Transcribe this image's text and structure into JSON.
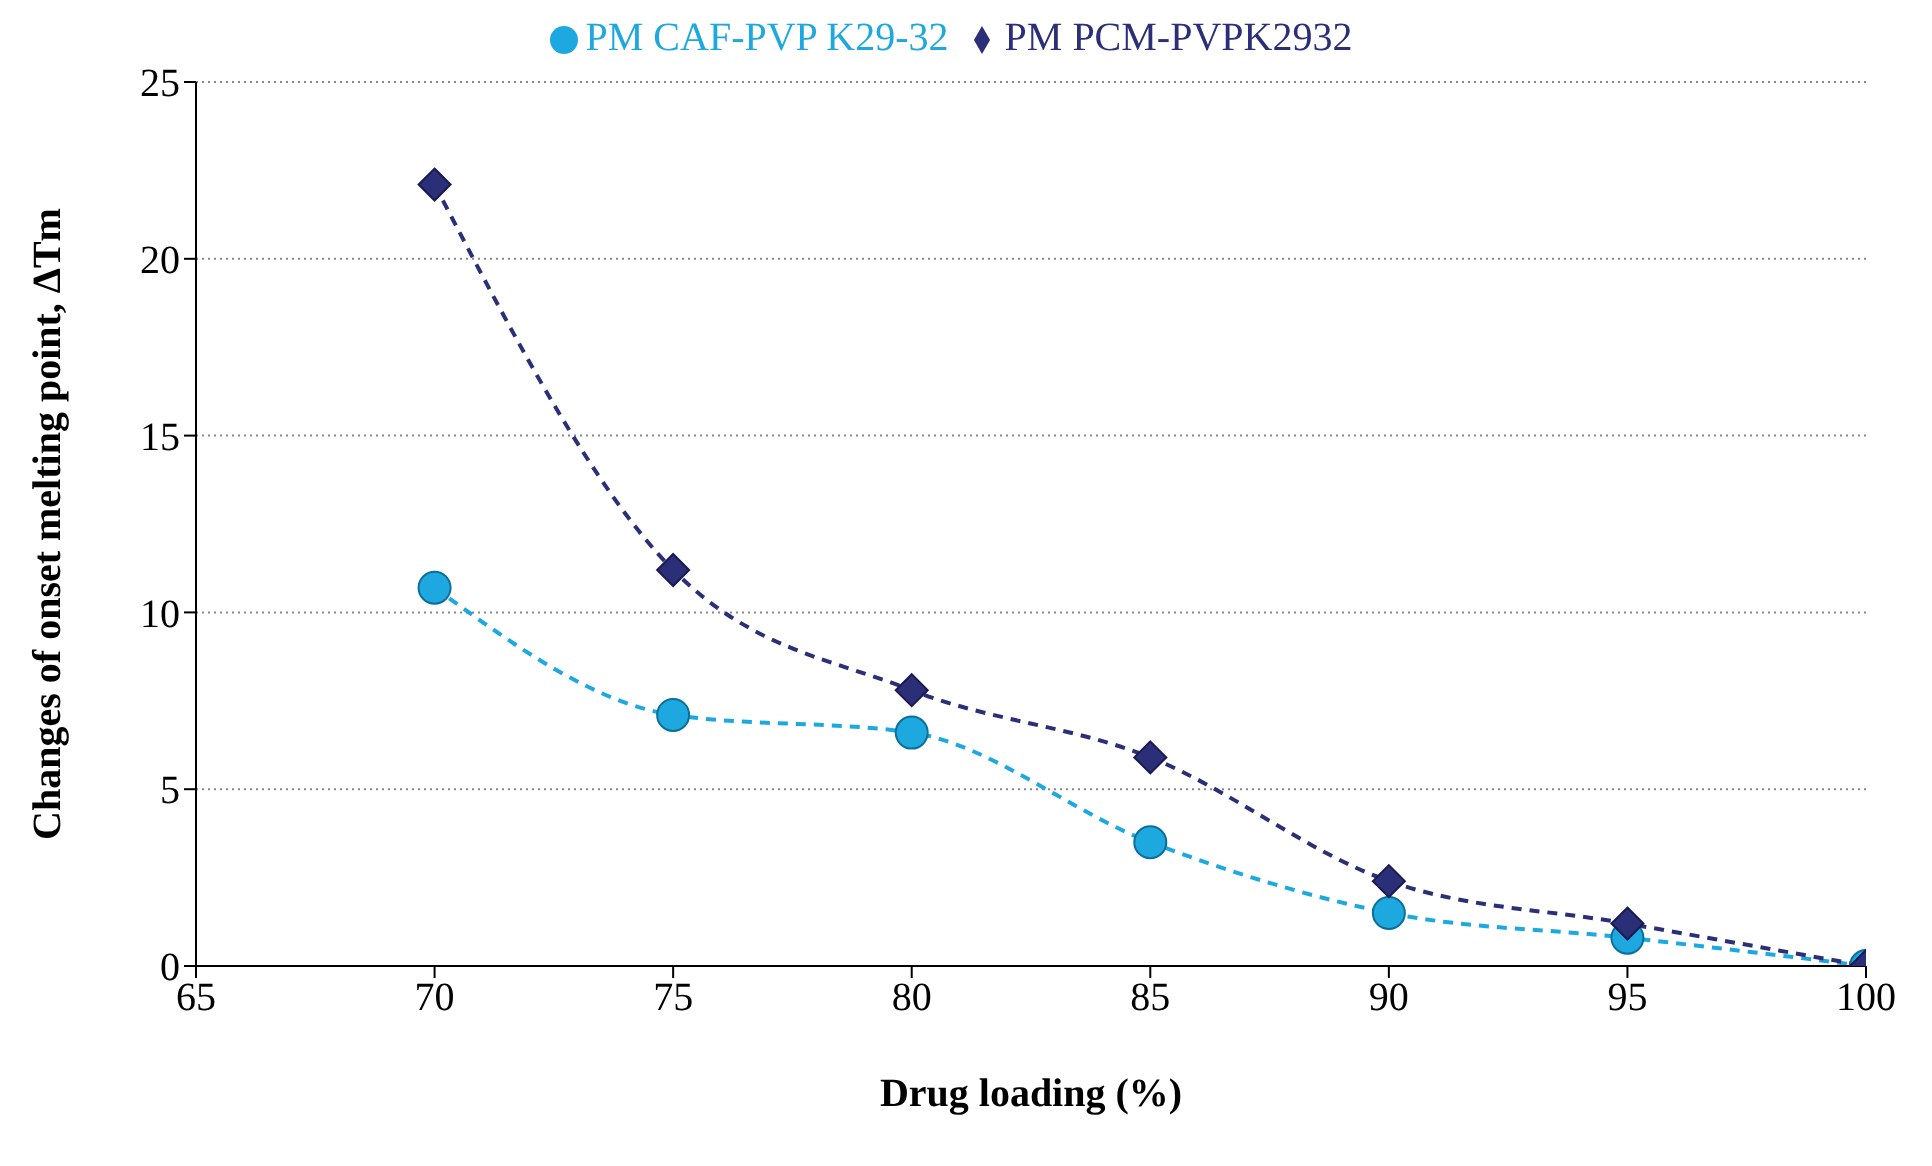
{
  "chart_data": {
    "type": "line",
    "xlabel": "Drug loading (%)",
    "ylabel": "Changes of onset melting point, ΔTm",
    "x": [
      70,
      75,
      80,
      85,
      90,
      95,
      100
    ],
    "series": [
      {
        "name": "PM CAF-PVP K29-32",
        "color": "#1ea8e0",
        "marker": "circle",
        "values": [
          10.7,
          7.1,
          6.6,
          3.5,
          1.5,
          0.8,
          0
        ]
      },
      {
        "name": "PM PCM-PVPK2932",
        "color": "#2a2f78",
        "marker": "diamond",
        "values": [
          22.1,
          11.2,
          7.8,
          5.9,
          2.4,
          1.2,
          0
        ]
      }
    ],
    "xlim": [
      65,
      100
    ],
    "xticks": [
      65,
      70,
      75,
      80,
      85,
      90,
      95,
      100
    ],
    "ylim": [
      0,
      25
    ],
    "yticks": [
      0,
      5,
      10,
      15,
      20,
      25
    ],
    "grid": "y",
    "legend": "top",
    "line_style": "dashed"
  }
}
